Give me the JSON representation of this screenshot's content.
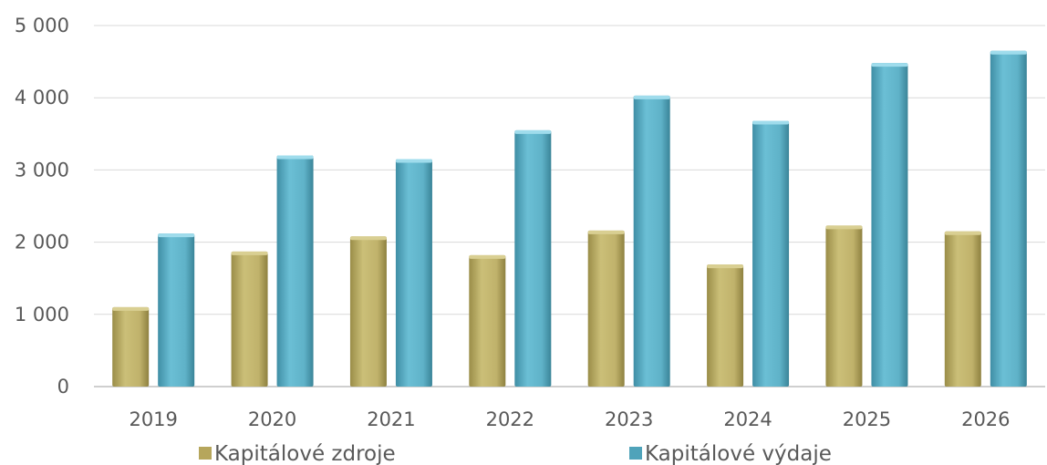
{
  "chart_data": {
    "type": "bar",
    "title": "",
    "xlabel": "",
    "ylabel": "",
    "categories": [
      "2019",
      "2020",
      "2021",
      "2022",
      "2023",
      "2024",
      "2025",
      "2026"
    ],
    "series": [
      {
        "name": "Kapitálové zdroje",
        "color": "#c2b46c",
        "values": [
          1100,
          1870,
          2080,
          1820,
          2160,
          1690,
          2230,
          2150
        ]
      },
      {
        "name": "Kapitálové výdaje",
        "color": "#5eb1c8",
        "values": [
          2120,
          3200,
          3150,
          3550,
          4030,
          3680,
          4480,
          4650
        ]
      }
    ],
    "ylim": [
      0,
      5000
    ],
    "yticks": [
      0,
      1000,
      2000,
      3000,
      4000,
      5000
    ],
    "ytick_labels": [
      "0",
      "1 000",
      "2 000",
      "3 000",
      "4 000",
      "5 000"
    ],
    "grid": true,
    "legend_position": "bottom"
  }
}
